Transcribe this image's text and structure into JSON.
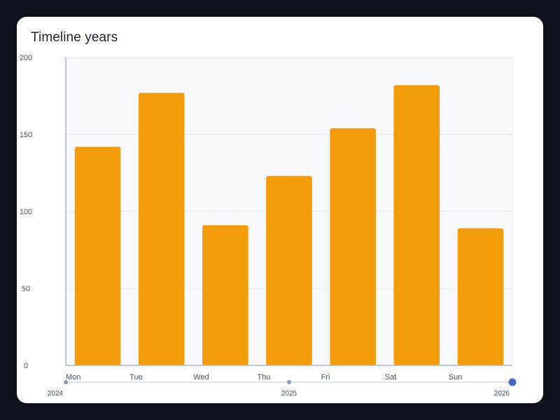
{
  "chart_data": {
    "type": "bar",
    "title": "Timeline years",
    "categories": [
      "Mon",
      "Tue",
      "Wed",
      "Thu",
      "Fri",
      "Sat",
      "Sun"
    ],
    "values": [
      142,
      177,
      91,
      123,
      154,
      182,
      89
    ],
    "ylim": [
      0,
      200
    ],
    "yticks": [
      "0",
      "50",
      "100",
      "150",
      "200"
    ],
    "ytick_values": [
      0,
      50,
      100,
      150,
      200
    ],
    "xlabel": "",
    "ylabel": "",
    "grid": true,
    "bar_color": "#f39c0c"
  },
  "timeline": {
    "labels": [
      "2024",
      "2025",
      "2026"
    ],
    "selected": "2026",
    "track_color": "#dde3ee",
    "dot_color": "#8e9ab3",
    "active_color": "#4a68c8"
  },
  "colors": {
    "plot_bg": "#f7f9fc",
    "grid": "#e4e9f1",
    "axis": "#a8b8d8"
  }
}
